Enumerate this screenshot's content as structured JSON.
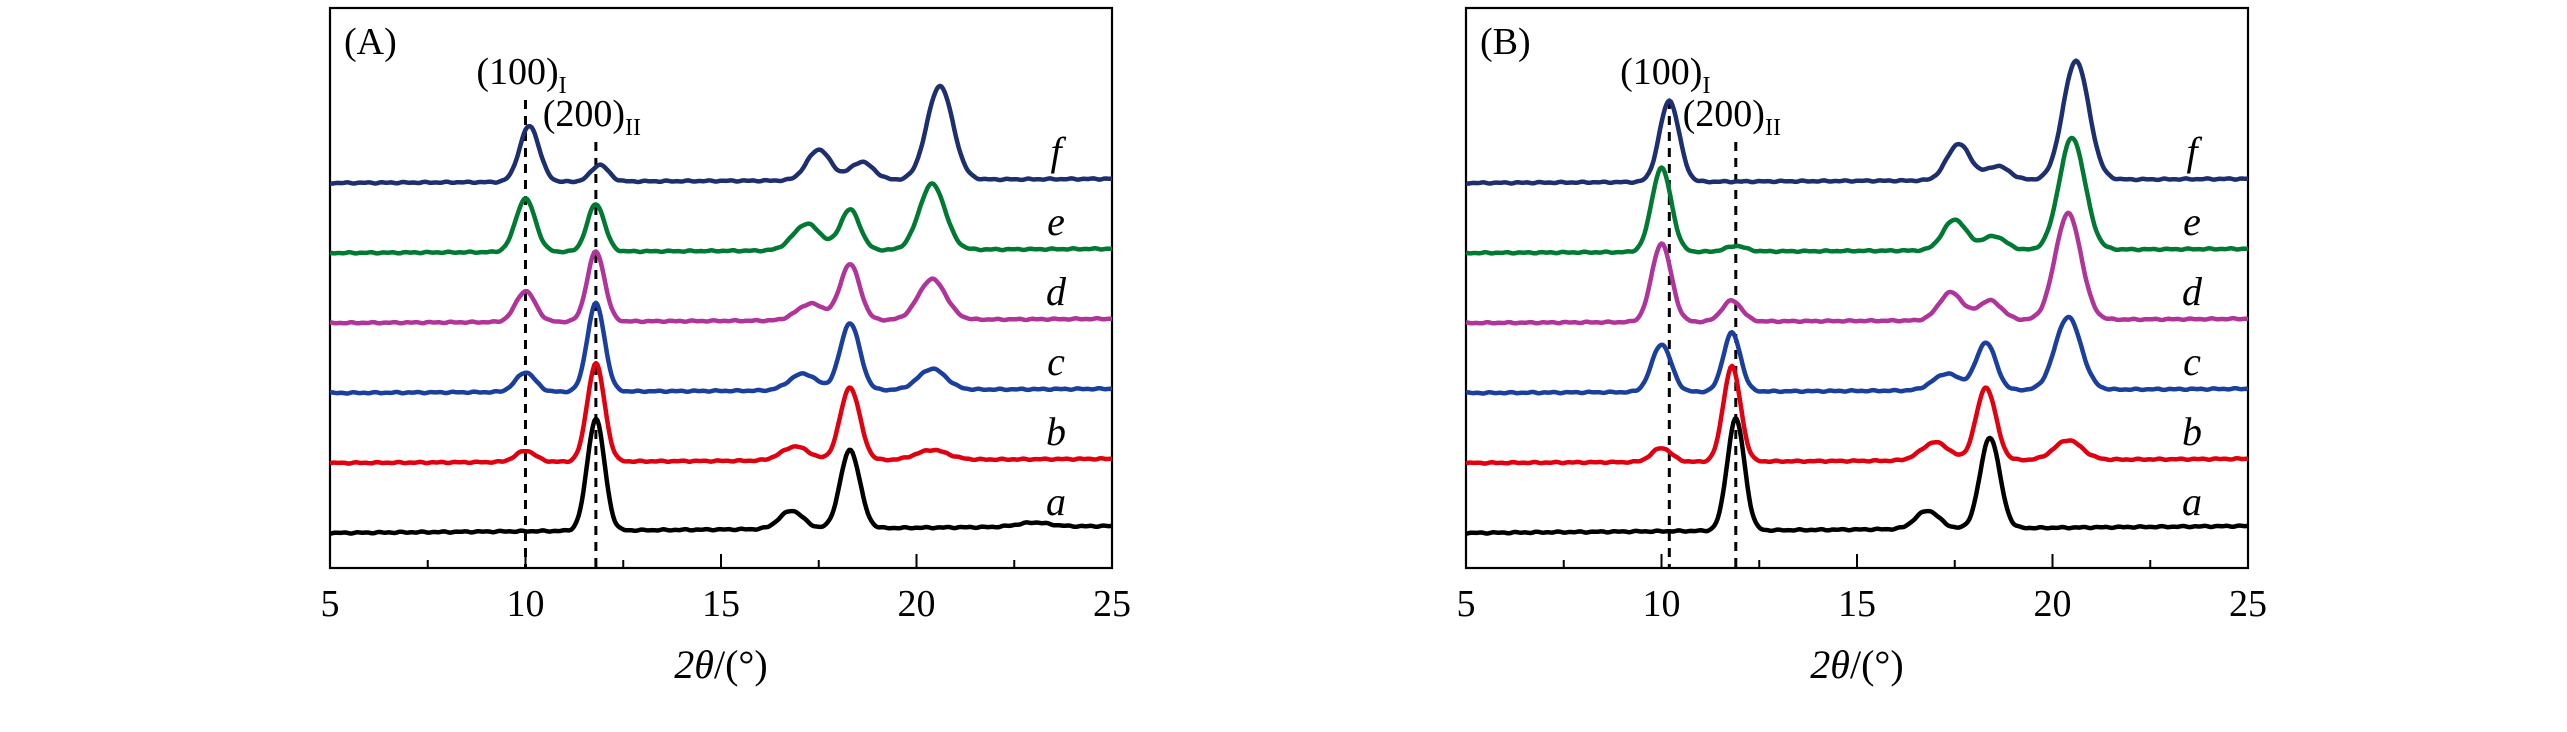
{
  "figure": {
    "xlabel_theta": "2θ",
    "xlabel_unit": "/(°)"
  },
  "chart_data": [
    {
      "type": "line",
      "panel_label": "(A)",
      "xlabel": "2θ/(°)",
      "ylabel": "",
      "xlim": [
        5,
        25
      ],
      "x_ticks": [
        5,
        10,
        15,
        20,
        25
      ],
      "reference_lines": [
        {
          "x": 10.0,
          "label_main": "(100)",
          "label_sub": "I"
        },
        {
          "x": 11.8,
          "label_main": "(200)",
          "label_sub": "II"
        }
      ],
      "series": [
        {
          "name": "a",
          "color": "#000000",
          "baseline": 0.0,
          "slope": 0.5,
          "noise": 0.05,
          "peaks": [
            [
              11.8,
              8.0,
              0.22
            ],
            [
              16.8,
              1.3,
              0.3
            ],
            [
              18.3,
              5.6,
              0.25
            ],
            [
              23.0,
              0.3,
              0.4
            ]
          ]
        },
        {
          "name": "b",
          "color": "#e0000f",
          "baseline": 5.0,
          "slope": 0.3,
          "noise": 0.05,
          "peaks": [
            [
              10.0,
              0.8,
              0.25
            ],
            [
              11.8,
              7.0,
              0.22
            ],
            [
              16.9,
              1.0,
              0.35
            ],
            [
              18.3,
              5.2,
              0.25
            ],
            [
              20.4,
              0.7,
              0.4
            ]
          ]
        },
        {
          "name": "c",
          "color": "#1a3f9c",
          "baseline": 10.0,
          "slope": 0.3,
          "noise": 0.05,
          "peaks": [
            [
              10.0,
              1.4,
              0.25
            ],
            [
              11.8,
              6.3,
              0.22
            ],
            [
              17.1,
              1.2,
              0.35
            ],
            [
              18.3,
              4.8,
              0.25
            ],
            [
              20.4,
              1.5,
              0.35
            ]
          ]
        },
        {
          "name": "d",
          "color": "#b0359a",
          "baseline": 15.0,
          "slope": 0.3,
          "noise": 0.05,
          "peaks": [
            [
              10.0,
              2.2,
              0.25
            ],
            [
              11.8,
              5.0,
              0.22
            ],
            [
              17.3,
              1.2,
              0.35
            ],
            [
              18.3,
              4.0,
              0.25
            ],
            [
              20.4,
              2.9,
              0.35
            ]
          ]
        },
        {
          "name": "e",
          "color": "#007a33",
          "baseline": 20.0,
          "slope": 0.3,
          "noise": 0.05,
          "peaks": [
            [
              10.0,
              3.8,
              0.25
            ],
            [
              11.8,
              3.4,
              0.22
            ],
            [
              17.2,
              1.9,
              0.35
            ],
            [
              18.3,
              2.9,
              0.25
            ],
            [
              20.4,
              4.7,
              0.33
            ]
          ]
        },
        {
          "name": "f",
          "color": "#1d2f6e",
          "baseline": 25.0,
          "slope": 0.3,
          "noise": 0.05,
          "peaks": [
            [
              10.1,
              4.0,
              0.25
            ],
            [
              11.9,
              1.2,
              0.22
            ],
            [
              17.5,
              2.2,
              0.3
            ],
            [
              18.6,
              1.3,
              0.3
            ],
            [
              20.6,
              6.7,
              0.33
            ]
          ]
        }
      ]
    },
    {
      "type": "line",
      "panel_label": "(B)",
      "xlabel": "2θ/(°)",
      "ylabel": "",
      "xlim": [
        5,
        25
      ],
      "x_ticks": [
        5,
        10,
        15,
        20,
        25
      ],
      "reference_lines": [
        {
          "x": 10.2,
          "label_main": "(100)",
          "label_sub": "I"
        },
        {
          "x": 11.9,
          "label_main": "(200)",
          "label_sub": "II"
        }
      ],
      "series": [
        {
          "name": "a",
          "color": "#000000",
          "baseline": 0.0,
          "slope": 0.5,
          "noise": 0.05,
          "peaks": [
            [
              11.9,
              8.0,
              0.22
            ],
            [
              16.8,
              1.3,
              0.3
            ],
            [
              18.4,
              6.5,
              0.25
            ]
          ]
        },
        {
          "name": "b",
          "color": "#e0000f",
          "baseline": 5.0,
          "slope": 0.3,
          "noise": 0.05,
          "peaks": [
            [
              10.0,
              1.0,
              0.25
            ],
            [
              11.8,
              6.8,
              0.22
            ],
            [
              17.0,
              1.3,
              0.35
            ],
            [
              18.3,
              5.2,
              0.25
            ],
            [
              20.4,
              1.4,
              0.35
            ]
          ]
        },
        {
          "name": "c",
          "color": "#1a3f9c",
          "baseline": 10.0,
          "slope": 0.3,
          "noise": 0.05,
          "peaks": [
            [
              10.0,
              3.4,
              0.25
            ],
            [
              11.8,
              4.2,
              0.22
            ],
            [
              17.3,
              1.2,
              0.35
            ],
            [
              18.3,
              3.4,
              0.25
            ],
            [
              20.4,
              5.2,
              0.33
            ]
          ]
        },
        {
          "name": "d",
          "color": "#b0359a",
          "baseline": 15.0,
          "slope": 0.3,
          "noise": 0.05,
          "peaks": [
            [
              10.0,
              5.6,
              0.25
            ],
            [
              11.8,
              1.5,
              0.25
            ],
            [
              17.4,
              2.0,
              0.3
            ],
            [
              18.4,
              1.4,
              0.3
            ],
            [
              20.4,
              7.6,
              0.33
            ]
          ]
        },
        {
          "name": "e",
          "color": "#007a33",
          "baseline": 20.0,
          "slope": 0.3,
          "noise": 0.05,
          "peaks": [
            [
              10.0,
              6.0,
              0.25
            ],
            [
              11.9,
              0.4,
              0.25
            ],
            [
              17.5,
              2.2,
              0.3
            ],
            [
              18.5,
              1.0,
              0.3
            ],
            [
              20.5,
              8.0,
              0.33
            ]
          ]
        },
        {
          "name": "f",
          "color": "#1d2f6e",
          "baseline": 25.0,
          "slope": 0.3,
          "noise": 0.05,
          "peaks": [
            [
              10.2,
              5.8,
              0.25
            ],
            [
              17.6,
              2.6,
              0.3
            ],
            [
              18.6,
              1.0,
              0.3
            ],
            [
              20.6,
              8.5,
              0.33
            ]
          ]
        }
      ]
    }
  ]
}
